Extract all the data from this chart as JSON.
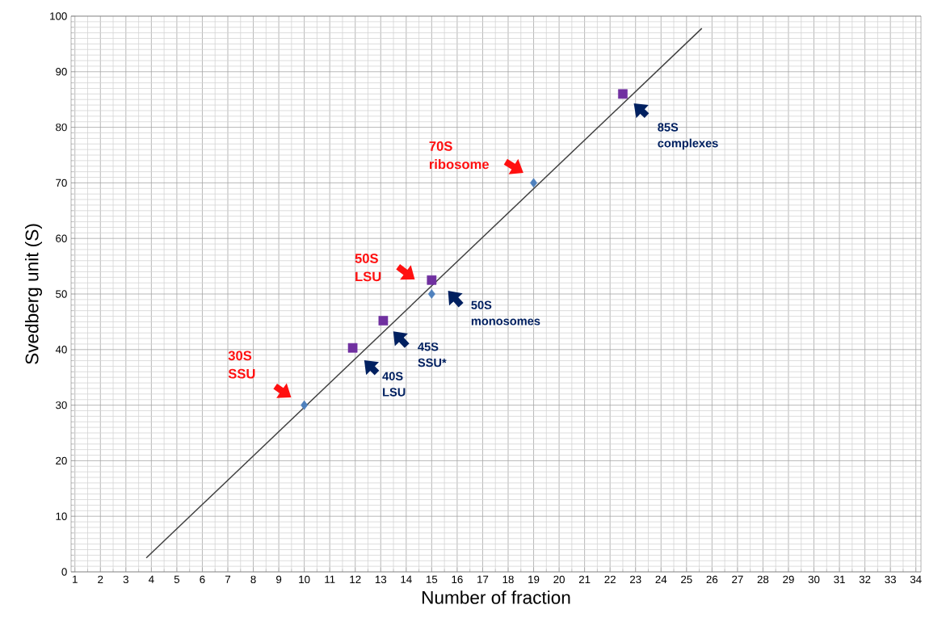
{
  "chart_data": {
    "type": "scatter",
    "xlabel": "Number of fraction",
    "ylabel": "Svedberg unit (S)",
    "xlim": [
      0.85,
      34.2
    ],
    "ylim": [
      0,
      100
    ],
    "xticks": [
      1,
      2,
      3,
      4,
      5,
      6,
      7,
      8,
      9,
      10,
      11,
      12,
      13,
      14,
      15,
      16,
      17,
      18,
      19,
      20,
      21,
      22,
      23,
      24,
      25,
      26,
      27,
      28,
      29,
      30,
      31,
      32,
      33,
      34
    ],
    "yticks": [
      0,
      10,
      20,
      30,
      40,
      50,
      60,
      70,
      80,
      90,
      100
    ],
    "grid": true,
    "series": [
      {
        "marker": "diamond",
        "color": "#4f81bd",
        "x": [
          10,
          15,
          19
        ],
        "values": [
          30,
          50,
          70
        ]
      },
      {
        "marker": "square",
        "color": "#7030a0",
        "x": [
          11.9,
          13.1,
          15,
          22.5
        ],
        "values": [
          40.3,
          45.2,
          52.5,
          86
        ]
      },
      {
        "type": "line",
        "marker": "none",
        "color": "#404040",
        "x": [
          3.8,
          25.6
        ],
        "values": [
          2.5,
          97.8
        ]
      }
    ],
    "annotations": [
      "30S SSU",
      "40S LSU",
      "45S SSU*",
      "50S LSU",
      "50S monosomes",
      "70S ribosome",
      "85S complexes"
    ]
  }
}
